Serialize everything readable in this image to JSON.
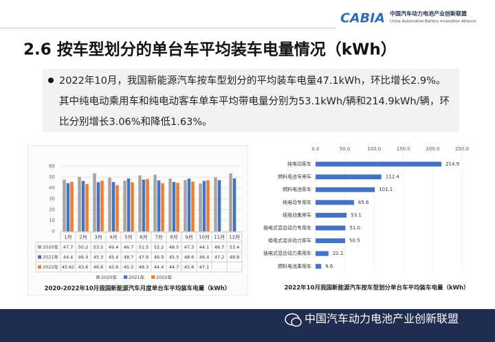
{
  "header": {
    "logo": "CABIA",
    "org_cn": "中国汽车动力电池产业创新联盟",
    "org_en": "China Automotive Battery Innovation Alliance"
  },
  "slide": {
    "title": "2.6 按车型划分的单台车平均装车电量情况（kWh）",
    "bullet": "2022年10月，我国新能源汽车按车型划分的平均装车电量47.1kWh，环比增长2.9%。其中纯电动乘用车和纯电动客车单车平均带电量分别为53.1kWh/辆和214.9kWh/辆，环比分别增长3.06%和降低1.63%。"
  },
  "chart_data": [
    {
      "type": "bar",
      "title": "2020-2022年10月我国新能源汽车月度单台车平均装车电量（kWh）",
      "categories": [
        "1月",
        "2月",
        "3月",
        "4月",
        "5月",
        "6月",
        "7月",
        "8月",
        "9月",
        "10月",
        "11月",
        "12月"
      ],
      "series": [
        {
          "name": "2020年",
          "color": "#a5a5a5",
          "values": [
            47.7,
            50.2,
            53.5,
            49.4,
            46.7,
            51.5,
            52.2,
            48.5,
            47.3,
            44.1,
            49.7,
            53.4
          ]
        },
        {
          "name": "2021年",
          "color": "#4472c4",
          "values": [
            44.4,
            46.4,
            45.3,
            45.4,
            48.7,
            47.6,
            46.9,
            45.5,
            48.6,
            46.4,
            47.2,
            48.8
          ]
        },
        {
          "name": "2022年",
          "color": "#ed7d31",
          "values": [
            45.62,
            43.6,
            46.6,
            42.6,
            45.3,
            48.3,
            44.4,
            44.7,
            45.8,
            47.1,
            null,
            null
          ]
        }
      ],
      "ylim": [
        0,
        60
      ],
      "yticks": [
        0,
        10,
        20,
        30,
        40,
        50,
        60
      ],
      "grid": true,
      "data_table": true
    },
    {
      "type": "barh",
      "title": "2022年10月我国新能源汽车按车型划分单台车平均装车电量（kWh）",
      "categories": [
        "纯电动客车",
        "燃料电池专用车",
        "燃料电池客车",
        "纯电动专用车",
        "纯电动乘用车",
        "插电式混合动力专用车",
        "插电式混合动力客车",
        "插电式混合动力乘用车",
        "燃料电池乘用车"
      ],
      "values": [
        214.9,
        112.4,
        101.1,
        65.6,
        53.1,
        51,
        50.5,
        22.1,
        9.6
      ],
      "value_labels": [
        "214.9",
        "112.4",
        "101.1",
        "65.6",
        "53.1",
        "51.0",
        "50.5",
        "22.1",
        "9.6"
      ],
      "color": "#4472c4",
      "xlim": [
        0,
        250
      ],
      "xticks": [
        {
          "value": 0,
          "label": "0.0"
        },
        {
          "value": 50,
          "label": "50.0"
        },
        {
          "value": 100,
          "label": "100.0"
        },
        {
          "value": 150,
          "label": "150.0"
        },
        {
          "value": 200,
          "label": "200.0"
        },
        {
          "value": 250,
          "label": "250.0"
        }
      ],
      "grid": true
    }
  ],
  "footer": {
    "text": "中国汽车动力电池产业创新联盟"
  }
}
